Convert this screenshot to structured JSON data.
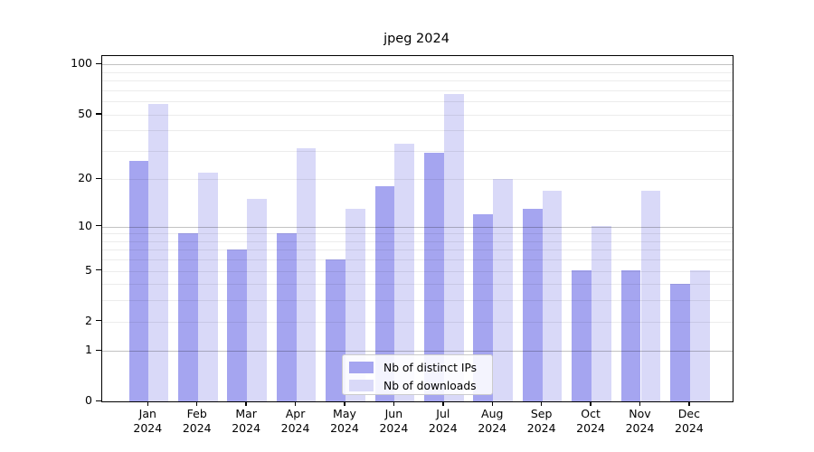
{
  "title": "jpeg 2024",
  "chart_data": {
    "type": "bar",
    "title": "jpeg 2024",
    "months": [
      "Jan",
      "Feb",
      "Mar",
      "Apr",
      "May",
      "Jun",
      "Jul",
      "Aug",
      "Sep",
      "Oct",
      "Nov",
      "Dec"
    ],
    "year_label": "2024",
    "categories": [
      "Jan 2024",
      "Feb 2024",
      "Mar 2024",
      "Apr 2024",
      "May 2024",
      "Jun 2024",
      "Jul 2024",
      "Aug 2024",
      "Sep 2024",
      "Oct 2024",
      "Nov 2024",
      "Dec 2024"
    ],
    "series": [
      {
        "name": "Nb of distinct IPs",
        "color": "#a5a5f0",
        "values": [
          26,
          9,
          7,
          9,
          6,
          18,
          29,
          12,
          13,
          5,
          5,
          4
        ]
      },
      {
        "name": "Nb of downloads",
        "color": "#d9d9f8",
        "values": [
          58,
          22,
          15,
          31,
          13,
          33,
          66,
          20,
          17,
          10,
          17,
          5
        ]
      }
    ],
    "y_ticks": [
      0,
      1,
      2,
      5,
      10,
      20,
      50,
      100
    ],
    "y_minor_gridlines": [
      2,
      3,
      4,
      5,
      6,
      7,
      8,
      9,
      20,
      30,
      40,
      50,
      60,
      70,
      80,
      90
    ],
    "y_major_gridlines": [
      1,
      10,
      100
    ],
    "y_scale": "log(value+1)",
    "ylim": [
      0,
      113
    ],
    "xlabel": "",
    "ylabel": "",
    "grid": true,
    "legend_position": "lower center"
  }
}
